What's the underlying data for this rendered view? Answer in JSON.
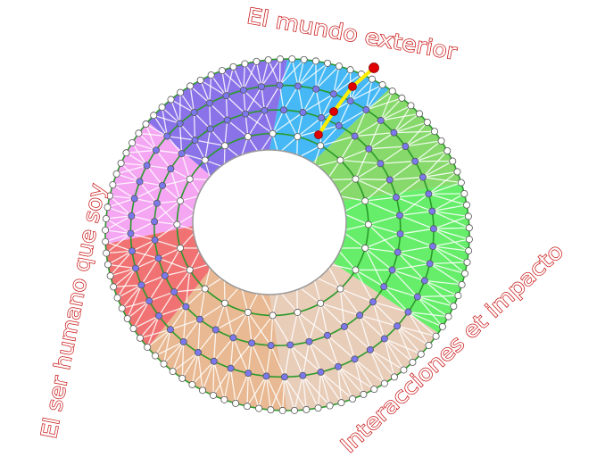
{
  "labels": {
    "top": "El mundo exterior",
    "left": "El ser humano que soy",
    "right": "Interacciones et impacto"
  },
  "sector_colors": [
    "#45b8f5",
    "#86d96a",
    "#66ee6a",
    "#e8cdb9",
    "#e8b992",
    "#f07272",
    "#f5a6f3",
    "#8a72e8"
  ],
  "colors": {
    "ring": "#2a9a2a",
    "node_outer": "#ffffff",
    "node_inner": "#7b78ee",
    "highlight_path": "#ffee00",
    "highlight_node": "#e00000",
    "label": "#c81010"
  }
}
